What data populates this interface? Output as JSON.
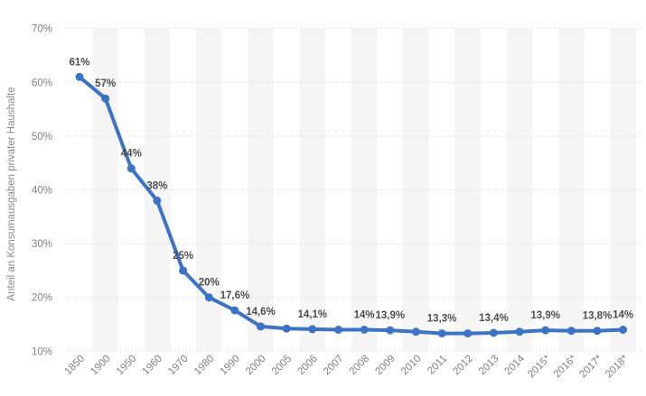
{
  "chart_data": {
    "type": "line",
    "title": "",
    "xlabel": "",
    "ylabel": "Anteil an Konsumausgaben privater Haushalte",
    "ylim": [
      10,
      70
    ],
    "yticks": [
      {
        "value": 10,
        "label": "10%"
      },
      {
        "value": 20,
        "label": "20%"
      },
      {
        "value": 30,
        "label": "30%"
      },
      {
        "value": 40,
        "label": "40%"
      },
      {
        "value": 50,
        "label": "50%"
      },
      {
        "value": 60,
        "label": "60%"
      },
      {
        "value": 70,
        "label": "70%"
      }
    ],
    "grid": "horizontal-dotted",
    "legend": "none",
    "background_style": "alternating-vertical-column-bands",
    "categories": [
      "1850",
      "1900",
      "1950",
      "1960",
      "1970",
      "1980",
      "1990",
      "2000",
      "2005",
      "2006",
      "2007",
      "2008",
      "2009",
      "2010",
      "2011",
      "2012",
      "2013",
      "2014",
      "2015*",
      "2016*",
      "2017*",
      "2018*"
    ],
    "series": [
      {
        "name": "Anteil an Konsumausgaben privater Haushalte",
        "color": "#3B73C6",
        "values": [
          61,
          57,
          44,
          38,
          25,
          20,
          17.6,
          14.6,
          14.2,
          14.1,
          14,
          14,
          13.9,
          13.6,
          13.3,
          13.3,
          13.4,
          13.6,
          13.9,
          13.8,
          13.8,
          14
        ],
        "point_labels": [
          "61%",
          "57%",
          "44%",
          "38%",
          "25%",
          "20%",
          "17,6%",
          "14,6%",
          "",
          "14,1%",
          "",
          "14%",
          "13,9%",
          "",
          "13,3%",
          "",
          "13,4%",
          "",
          "13,9%",
          "",
          "13,8%",
          "14%"
        ]
      }
    ]
  },
  "colors": {
    "line": "#3B73C6",
    "column_band": "#f5f5f5",
    "gridline": "#cccccc",
    "tick_label": "#808080",
    "axis_title": "#8a8a8a",
    "data_label": "#4d4d4d",
    "background": "#ffffff"
  }
}
